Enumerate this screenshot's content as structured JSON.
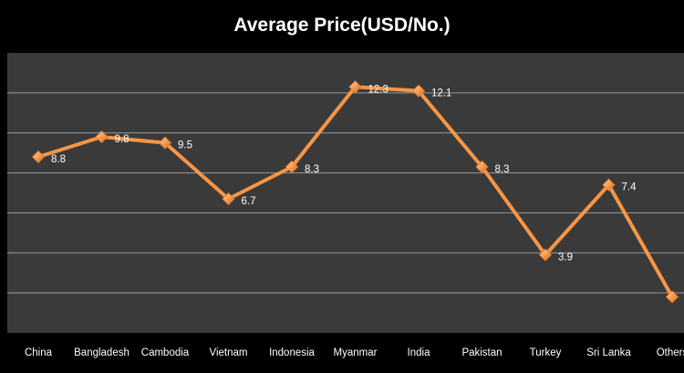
{
  "chart_data": {
    "type": "line",
    "title": "Average Price(USD/No.)",
    "xlabel": "",
    "ylabel": "",
    "categories": [
      "China",
      "Bangladesh",
      "Cambodia",
      "Vietnam",
      "Indonesia",
      "Myanmar",
      "India",
      "Pakistan",
      "Turkey",
      "Sri Lanka",
      "Others"
    ],
    "series": [
      {
        "values": [
          8.8,
          9.8,
          9.5,
          6.7,
          8.3,
          12.3,
          12.1,
          8.3,
          3.9,
          7.4,
          1.8
        ],
        "data_labels": [
          "8.8",
          "9.8",
          "9.5",
          "6.7",
          "8.3",
          "12.3",
          "12.1",
          "8.3",
          "3.9",
          "7.4",
          ""
        ],
        "color": "#F79646"
      }
    ],
    "ylim": [
      0,
      14
    ],
    "y_gridline_step": 2,
    "y_tick_labels_shown": false,
    "grid": true,
    "legend": "none",
    "colors": {
      "background": "#000000",
      "plot_area": "#3a3a3a",
      "gridline": "#9a9a9a",
      "line": "#F79646",
      "text": "#ffffff"
    }
  }
}
